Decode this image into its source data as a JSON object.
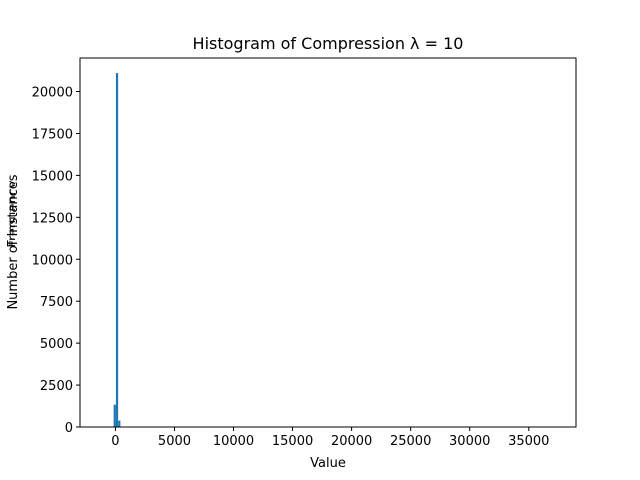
{
  "chart_data": {
    "type": "bar",
    "title": "Histogram of Compression λ = 10",
    "xlabel": "Value",
    "ylabel": "Number of Instances",
    "ylabel_overlap": "Frequency",
    "xlim": [
      -3000,
      39000
    ],
    "ylim": [
      0,
      22000
    ],
    "xticks": [
      0,
      5000,
      10000,
      15000,
      20000,
      25000,
      30000,
      35000
    ],
    "yticks": [
      0,
      2500,
      5000,
      7500,
      10000,
      12500,
      15000,
      17500,
      20000
    ],
    "grid": false,
    "bar_color": "#1f77b4",
    "bins": [
      {
        "x0": -150,
        "x1": 40,
        "value": 1330
      },
      {
        "x0": 40,
        "x1": 230,
        "value": 21100
      },
      {
        "x0": 230,
        "x1": 420,
        "value": 380
      }
    ]
  }
}
